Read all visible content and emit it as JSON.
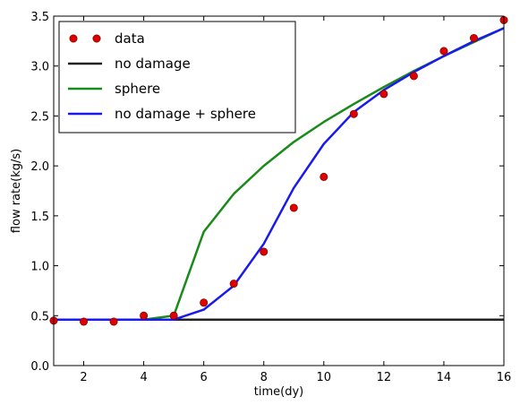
{
  "chart_data": {
    "type": "line",
    "title": "",
    "xlabel": "time(dy)",
    "ylabel": "flow rate(kg/s)",
    "xlim": [
      1,
      16
    ],
    "ylim": [
      0.0,
      3.5
    ],
    "xticks": [
      "2",
      "4",
      "6",
      "8",
      "10",
      "12",
      "14",
      "16"
    ],
    "yticks": [
      "0.0",
      "0.5",
      "1.0",
      "1.5",
      "2.0",
      "2.5",
      "3.0",
      "3.5"
    ],
    "grid": false,
    "legend_position": "top-left",
    "series": [
      {
        "name": "data",
        "kind": "scatter",
        "color": "#dd0000",
        "x": [
          1,
          2,
          3,
          4,
          5,
          6,
          7,
          8,
          9,
          10,
          11,
          12,
          13,
          14,
          15,
          16
        ],
        "y": [
          0.45,
          0.44,
          0.44,
          0.5,
          0.5,
          0.63,
          0.82,
          1.14,
          1.58,
          1.89,
          2.52,
          2.72,
          2.9,
          3.15,
          3.28,
          3.46
        ]
      },
      {
        "name": "no damage",
        "kind": "line",
        "color": "#222222",
        "x": [
          1,
          16
        ],
        "y": [
          0.46,
          0.46
        ]
      },
      {
        "name": "sphere",
        "kind": "line",
        "color": "#1a8a1a",
        "x": [
          1,
          2,
          3,
          4,
          5,
          6,
          7,
          8,
          9,
          10,
          11,
          12,
          13,
          14,
          15,
          16
        ],
        "y": [
          0.46,
          0.46,
          0.46,
          0.46,
          0.5,
          1.34,
          1.72,
          2.0,
          2.24,
          2.44,
          2.62,
          2.79,
          2.95,
          3.1,
          3.24,
          3.38
        ]
      },
      {
        "name": "no damage + sphere",
        "kind": "line",
        "color": "#1a1aee",
        "x": [
          1,
          2,
          3,
          4,
          5,
          6,
          7,
          8,
          9,
          10,
          11,
          12,
          13,
          14,
          15,
          16
        ],
        "y": [
          0.46,
          0.46,
          0.46,
          0.46,
          0.46,
          0.56,
          0.8,
          1.22,
          1.78,
          2.22,
          2.54,
          2.76,
          2.94,
          3.1,
          3.25,
          3.38
        ]
      }
    ]
  }
}
